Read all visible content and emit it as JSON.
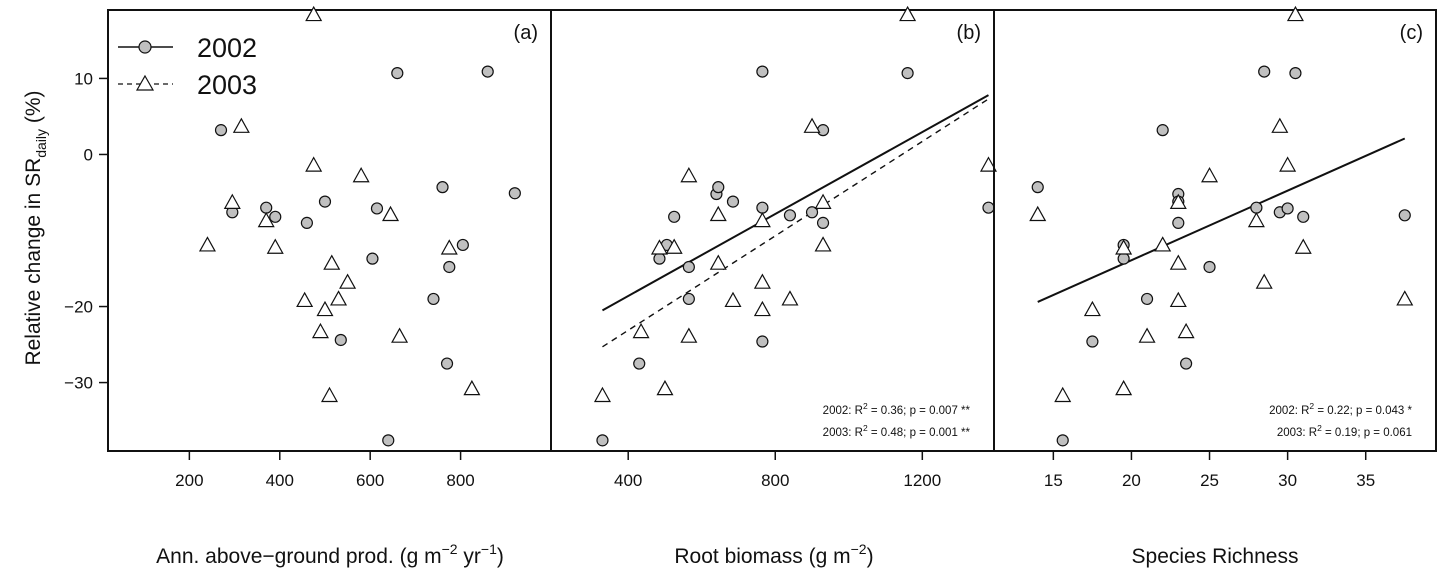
{
  "ylabel_main": "Relative change in SR",
  "ylabel_sub": "daily",
  "ylabel_end": " (%)",
  "legend": [
    {
      "label": "2002",
      "marker": "circle",
      "line": "solid"
    },
    {
      "label": "2003",
      "marker": "triangle",
      "line": "dashed"
    }
  ],
  "colors": {
    "circle_fill": "#c0c0c0",
    "line": "#111111",
    "triangle_fill": "#ffffff"
  },
  "xlabels": {
    "a": {
      "pre": "Ann. above−ground prod. (g m",
      "sup1": "−2",
      "mid": " yr",
      "sup2": "−1",
      "post": ")"
    },
    "b": {
      "pre": "Root biomass (g m",
      "sup1": "−2",
      "post": ")"
    },
    "c": {
      "text": "Species Richness"
    }
  },
  "chart_data": [
    {
      "type": "scatter",
      "panel": "(a)",
      "xlabel": "Ann. above−ground prod. (g m−2 yr−1)",
      "ylabel": "Relative change in SRdaily (%)",
      "xlim": [
        20,
        1000
      ],
      "ylim": [
        -39,
        19
      ],
      "xticks": [
        200,
        400,
        600,
        800
      ],
      "yticks": [
        -30,
        -20,
        0,
        10
      ],
      "ytick_labels": [
        "−30",
        "−20",
        "0",
        "10"
      ],
      "legend_position": "top-left",
      "series": [
        {
          "name": "2002",
          "marker": "circle",
          "points": [
            [
              270,
              3.2
            ],
            [
              295,
              -7.6
            ],
            [
              370,
              -7.0
            ],
            [
              390,
              -8.2
            ],
            [
              460,
              -9.0
            ],
            [
              500,
              -6.2
            ],
            [
              535,
              -24.4
            ],
            [
              605,
              -13.7
            ],
            [
              615,
              -7.1
            ],
            [
              640,
              -37.6
            ],
            [
              660,
              10.7
            ],
            [
              740,
              -19.0
            ],
            [
              760,
              -4.3
            ],
            [
              770,
              -27.5
            ],
            [
              775,
              -14.8
            ],
            [
              805,
              -11.9
            ],
            [
              860,
              10.9
            ],
            [
              920,
              -5.1
            ]
          ]
        },
        {
          "name": "2003",
          "marker": "triangle",
          "points": [
            [
              240,
              -11.9
            ],
            [
              295,
              -6.3
            ],
            [
              315,
              3.7
            ],
            [
              370,
              -8.7
            ],
            [
              390,
              -12.2
            ],
            [
              455,
              -19.2
            ],
            [
              475,
              18.4
            ],
            [
              475,
              -1.4
            ],
            [
              490,
              -23.3
            ],
            [
              500,
              -20.4
            ],
            [
              510,
              -31.7
            ],
            [
              515,
              -14.3
            ],
            [
              530,
              -19.0
            ],
            [
              550,
              -16.8
            ],
            [
              580,
              -2.8
            ],
            [
              645,
              -7.9
            ],
            [
              665,
              -23.9
            ],
            [
              775,
              -12.3
            ],
            [
              825,
              -30.8
            ]
          ]
        }
      ]
    },
    {
      "type": "scatter",
      "panel": "(b)",
      "xlabel": "Root biomass (g m−2)",
      "xlim": [
        190,
        1395
      ],
      "ylim": [
        -39,
        19
      ],
      "xticks": [
        400,
        800,
        1200
      ],
      "legend_position": "none",
      "series": [
        {
          "name": "2002",
          "marker": "circle",
          "points": [
            [
              330,
              -37.6
            ],
            [
              430,
              -27.5
            ],
            [
              485,
              -13.7
            ],
            [
              505,
              -11.9
            ],
            [
              525,
              -8.2
            ],
            [
              565,
              -14.8
            ],
            [
              565,
              -19.0
            ],
            [
              640,
              -5.2
            ],
            [
              645,
              -4.3
            ],
            [
              685,
              -6.2
            ],
            [
              765,
              10.9
            ],
            [
              765,
              -7.0
            ],
            [
              765,
              -24.6
            ],
            [
              840,
              -8.0
            ],
            [
              900,
              -7.6
            ],
            [
              930,
              3.2
            ],
            [
              930,
              -9.0
            ],
            [
              1160,
              10.7
            ],
            [
              1380,
              -7.0
            ]
          ]
        },
        {
          "name": "2003",
          "marker": "triangle",
          "points": [
            [
              330,
              -31.7
            ],
            [
              435,
              -23.3
            ],
            [
              485,
              -12.3
            ],
            [
              500,
              -30.8
            ],
            [
              525,
              -12.2
            ],
            [
              565,
              -2.8
            ],
            [
              565,
              -23.9
            ],
            [
              645,
              -7.9
            ],
            [
              645,
              -14.3
            ],
            [
              685,
              -19.2
            ],
            [
              765,
              -8.7
            ],
            [
              765,
              -16.8
            ],
            [
              765,
              -20.4
            ],
            [
              840,
              -19.0
            ],
            [
              900,
              3.7
            ],
            [
              930,
              -6.3
            ],
            [
              930,
              -11.9
            ],
            [
              1160,
              18.4
            ],
            [
              1380,
              -1.4
            ]
          ]
        }
      ],
      "fits": [
        {
          "series": "2002",
          "line": "solid",
          "x": [
            330,
            1380
          ],
          "y": [
            -20.5,
            7.8
          ]
        },
        {
          "series": "2003",
          "line": "dashed",
          "x": [
            330,
            1380
          ],
          "y": [
            -25.3,
            7.3
          ]
        }
      ],
      "annotations": [
        {
          "pre": "2002: R",
          "sup": "2",
          "post": " = 0.36; p = 0.007 **"
        },
        {
          "pre": "2003: R",
          "sup": "2",
          "post": " = 0.48; p = 0.001 **"
        }
      ]
    },
    {
      "type": "scatter",
      "panel": "(c)",
      "xlabel": "Species Richness",
      "xlim": [
        11.2,
        39.5
      ],
      "ylim": [
        -39,
        19
      ],
      "xticks": [
        15,
        20,
        25,
        30,
        35
      ],
      "legend_position": "none",
      "series": [
        {
          "name": "2002",
          "marker": "circle",
          "points": [
            [
              14,
              -4.3
            ],
            [
              15.6,
              -37.6
            ],
            [
              17.5,
              -24.6
            ],
            [
              19.5,
              -11.9
            ],
            [
              19.5,
              -13.7
            ],
            [
              21,
              -19.0
            ],
            [
              22,
              3.2
            ],
            [
              23,
              -5.2
            ],
            [
              23,
              -6.2
            ],
            [
              23,
              -9.0
            ],
            [
              23.5,
              -27.5
            ],
            [
              25,
              -14.8
            ],
            [
              28,
              -7.0
            ],
            [
              28.5,
              10.9
            ],
            [
              29.5,
              -7.6
            ],
            [
              30,
              -7.1
            ],
            [
              30.5,
              10.7
            ],
            [
              31,
              -8.2
            ],
            [
              37.5,
              -8.0
            ]
          ]
        },
        {
          "name": "2003",
          "marker": "triangle",
          "points": [
            [
              14,
              -7.9
            ],
            [
              15.6,
              -31.7
            ],
            [
              17.5,
              -20.4
            ],
            [
              19.5,
              -12.3
            ],
            [
              19.5,
              -30.8
            ],
            [
              21,
              -23.9
            ],
            [
              22,
              -11.9
            ],
            [
              23,
              -6.3
            ],
            [
              23,
              -14.3
            ],
            [
              23,
              -19.2
            ],
            [
              23.5,
              -23.3
            ],
            [
              25,
              -2.8
            ],
            [
              28,
              -8.7
            ],
            [
              28.5,
              -16.8
            ],
            [
              29.5,
              3.7
            ],
            [
              30,
              -1.4
            ],
            [
              30.5,
              18.4
            ],
            [
              31,
              -12.2
            ],
            [
              37.5,
              -19.0
            ]
          ]
        }
      ],
      "fits": [
        {
          "series": "combined",
          "line": "solid",
          "x": [
            14,
            37.5
          ],
          "y": [
            -19.4,
            2.1
          ]
        }
      ],
      "annotations": [
        {
          "pre": "2002: R",
          "sup": "2",
          "post": " = 0.22; p = 0.043 *"
        },
        {
          "pre": "2003: R",
          "sup": "2",
          "post": " = 0.19; p = 0.061"
        }
      ]
    }
  ]
}
